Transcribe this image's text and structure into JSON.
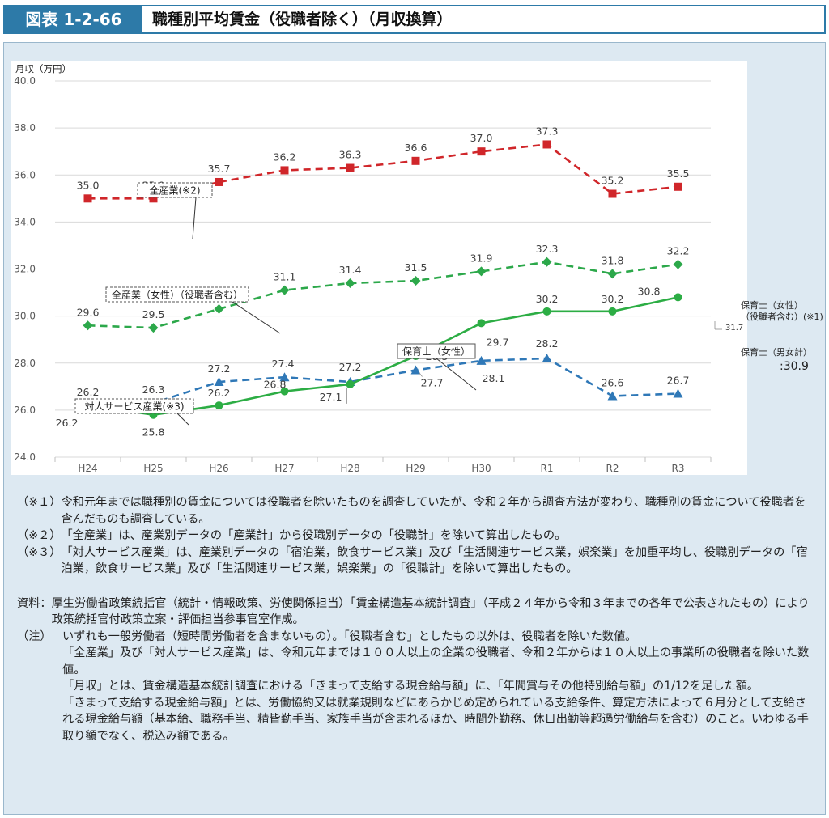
{
  "figure": {
    "number": "図表 1-2-66",
    "title": "職種別平均賃金（役職者除く）（月収換算）"
  },
  "chart_data": {
    "type": "line",
    "ylabel": "月収（万円）",
    "ylim": [
      24.0,
      40.0
    ],
    "yticks": [
      "24.0",
      "26.0",
      "28.0",
      "30.0",
      "32.0",
      "34.0",
      "36.0",
      "38.0",
      "40.0"
    ],
    "categories": [
      "H24",
      "H25",
      "H26",
      "H27",
      "H28",
      "H29",
      "H30",
      "R1",
      "R2",
      "R3"
    ],
    "series": [
      {
        "name": "全産業(※2)",
        "color": "#d0262a",
        "dash": true,
        "marker": "square",
        "values": [
          35.0,
          35.0,
          35.7,
          36.2,
          36.3,
          36.6,
          37.0,
          37.3,
          35.2,
          35.5
        ],
        "labels": [
          "35.0",
          "35.0",
          "35.7",
          "36.2",
          "36.3",
          "36.6",
          "37.0",
          "37.3",
          "35.2",
          "35.5"
        ]
      },
      {
        "name": "全産業（女性）（役職者含む）",
        "color": "#2ca84a",
        "dash": true,
        "marker": "diamond",
        "values": [
          29.6,
          29.5,
          30.3,
          31.1,
          31.4,
          31.5,
          31.9,
          32.3,
          31.8,
          32.2
        ],
        "labels": [
          "29.6",
          "29.5",
          "30.3",
          "31.1",
          "31.4",
          "31.5",
          "31.9",
          "32.3",
          "31.8",
          "32.2"
        ]
      },
      {
        "name": "対人サービス産業(※3)",
        "color": "#2f78b7",
        "dash": true,
        "marker": "triangle",
        "values": [
          26.2,
          26.3,
          27.2,
          27.4,
          27.2,
          27.7,
          28.1,
          28.2,
          26.6,
          26.7
        ],
        "labels": [
          "26.2",
          "26.3",
          "27.2",
          "27.4",
          "27.2",
          "27.7",
          "28.1",
          "28.2",
          "26.6",
          "26.7"
        ]
      },
      {
        "name": "保育士（女性）",
        "color": "#2cad44",
        "dash": false,
        "marker": "circle",
        "values": [
          26.2,
          25.8,
          26.2,
          26.8,
          27.1,
          28.3,
          29.7,
          30.2,
          30.2,
          30.8
        ],
        "labels": [
          "26.2",
          "25.8",
          "26.2",
          "26.8",
          "27.1",
          "28.3",
          "29.7",
          "30.2",
          "30.2",
          "30.8"
        ]
      }
    ],
    "annotations": {
      "female_incl_mgr_label": "保育士（女性）（役職者含む）(※1)",
      "female_incl_mgr_value": "31.7",
      "male_female_label": "保育士（男女計）",
      "male_female_value": ":30.9"
    }
  },
  "notes": [
    {
      "mark": "（※１）",
      "text": "令和元年までは職種別の賃金については役職者を除いたものを調査していたが、令和２年から調査方法が変わり、職種別の賃金について役職者を含んだものも調査している。"
    },
    {
      "mark": "（※２）",
      "text": "「全産業」は、産業別データの「産業計」から役職別データの「役職計」を除いて算出したもの。"
    },
    {
      "mark": "（※３）",
      "text": "「対人サービス産業」は、産業別データの「宿泊業，飲食サービス業」及び「生活関連サービス業，娯楽業」を加重平均し、役職別データの「宿泊業，飲食サービス業」及び「生活関連サービス業，娯楽業」の「役職計」を除いて算出したもの。"
    }
  ],
  "source": {
    "mark": "資料：",
    "text": "厚生労働省政策統括官（統計・情報政策、労使関係担当）「賃金構造基本統計調査」（平成２４年から令和３年までの各年で公表されたもの）により政策統括官付政策立案・評価担当参事官室作成。"
  },
  "memo": {
    "mark": "（注）",
    "lines": [
      "いずれも一般労働者（短時間労働者を含まないもの）。「役職者含む」としたもの以外は、役職者を除いた数値。",
      "「全産業」及び「対人サービス産業」は、令和元年までは１００人以上の企業の役職者、令和２年からは１０人以上の事業所の役職者を除いた数値。",
      "「月収」とは、賃金構造基本統計調査における「きまって支給する現金給与額」に、「年間賞与その他特別給与額」の1/12を足した額。",
      "「きまって支給する現金給与額」とは、労働協約又は就業規則などにあらかじめ定められている支給条件、算定方法によって６月分として支給される現金給与額（基本給、職務手当、精皆勤手当、家族手当が含まれるほか、時間外勤務、休日出勤等超過労働給与を含む）のこと。いわゆる手取り額でなく、税込み額である。"
    ]
  }
}
